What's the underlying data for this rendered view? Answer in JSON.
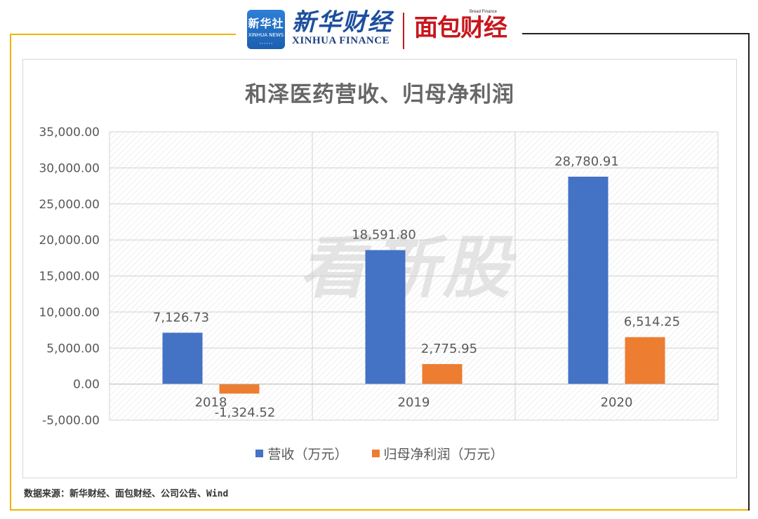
{
  "header": {
    "xinhua_badge": {
      "line1": "新华社",
      "line2": "XINHUA NEWS"
    },
    "xinhua_finance": {
      "cn": "新华财经",
      "en": "XINHUA FINANCE"
    },
    "bread_finance": {
      "en": "Bread Finance",
      "cn": "面包财经"
    }
  },
  "watermark": "看新股",
  "source_note": "数据来源：新华财经、面包财经、公司公告、Wind",
  "colors": {
    "revenue": "#4472c4",
    "profit": "#ed7d31",
    "frame_accent": "#f0b400"
  },
  "chart_data": {
    "type": "bar",
    "title": "和泽医药营收、归母净利润",
    "categories": [
      "2018",
      "2019",
      "2020"
    ],
    "series": [
      {
        "name": "营收（万元）",
        "values": [
          7126.73,
          18591.8,
          28780.91
        ],
        "labels": [
          "7,126.73",
          "18,591.80",
          "28,780.91"
        ]
      },
      {
        "name": "归母净利润（万元）",
        "values": [
          -1324.52,
          2775.95,
          6514.25
        ],
        "labels": [
          "-1,324.52",
          "2,775.95",
          "6,514.25"
        ]
      }
    ],
    "ylim": [
      -5000,
      35000
    ],
    "yticks": [
      "-5,000.00",
      "0.00",
      "5,000.00",
      "10,000.00",
      "15,000.00",
      "20,000.00",
      "25,000.00",
      "30,000.00",
      "35,000.00"
    ],
    "ytick_values": [
      -5000,
      0,
      5000,
      10000,
      15000,
      20000,
      25000,
      30000,
      35000
    ],
    "grid": true,
    "legend_position": "bottom"
  }
}
